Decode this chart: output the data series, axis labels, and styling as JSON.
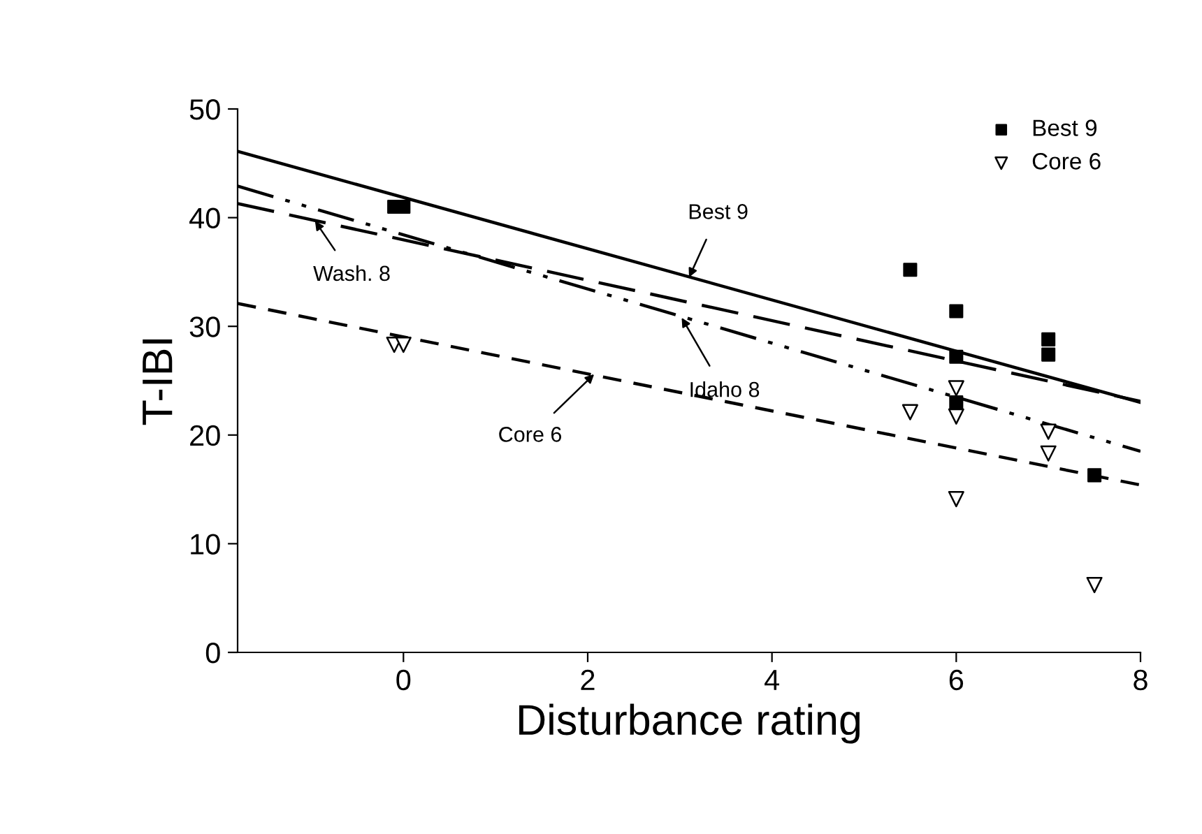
{
  "chart_data": {
    "type": "scatter",
    "xlabel": "Disturbance rating",
    "ylabel": "T-IBI",
    "xlim": [
      -1.8,
      8
    ],
    "xticks": [
      0,
      2,
      4,
      6,
      8
    ],
    "ylim": [
      0,
      50
    ],
    "yticks": [
      0,
      10,
      20,
      30,
      40,
      50
    ],
    "grid": false,
    "legend": "top right",
    "series": [
      {
        "name": "Best 9",
        "marker": "square",
        "color": "#000000",
        "x": [
          -0.1,
          0,
          5.5,
          6,
          6,
          6,
          7,
          7,
          7.5
        ],
        "values": [
          41.0,
          41.0,
          35.2,
          31.4,
          27.2,
          23.0,
          28.8,
          27.4,
          16.3
        ]
      },
      {
        "name": "Core 6",
        "marker": "triangle",
        "color": "#000000",
        "x": [
          -0.1,
          0,
          5.5,
          6,
          6,
          6,
          7,
          7,
          7.5
        ],
        "values": [
          28.3,
          28.3,
          22.1,
          24.3,
          21.7,
          14.1,
          20.3,
          18.3,
          6.2
        ]
      },
      {
        "type": "line",
        "line_style": "solid",
        "color": "#000000",
        "x": [
          -1.8,
          8
        ],
        "values": [
          46.1,
          23.0
        ]
      },
      {
        "type": "line",
        "line_style": "longdash",
        "color": "#000000",
        "x": [
          -1.8,
          8
        ],
        "values": [
          41.3,
          23.1
        ]
      },
      {
        "type": "line",
        "line_style": "dashdotdot",
        "color": "#000000",
        "x": [
          -1.8,
          8
        ],
        "values": [
          42.9,
          18.5
        ]
      },
      {
        "type": "line",
        "line_style": "dashed",
        "color": "#000000",
        "x": [
          -1.8,
          8
        ],
        "values": [
          32.1,
          15.4
        ]
      }
    ],
    "annotations": [
      {
        "text": "Best 9",
        "x": 3.1,
        "y": 34.5
      },
      {
        "text": "Wash. 8",
        "x": -0.96,
        "y": 39.7
      },
      {
        "text": "Idaho 8",
        "x": 3.02,
        "y": 30.8
      },
      {
        "text": "Core 6",
        "x": 2.07,
        "y": 25.6
      }
    ]
  }
}
